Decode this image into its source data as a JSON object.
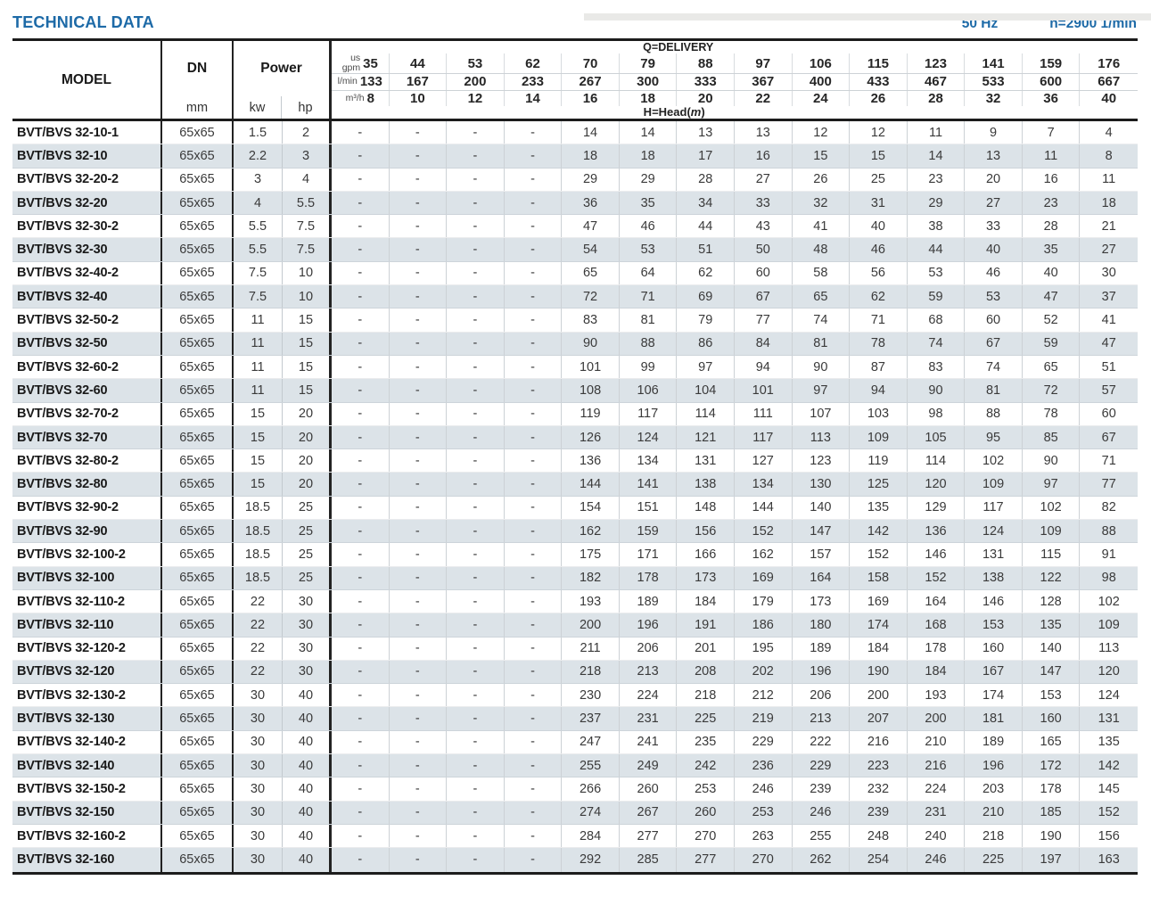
{
  "page": {
    "title": "TECHNICAL DATA",
    "frequency": "50 Hz",
    "speed": "n=2900 1/min"
  },
  "colors": {
    "accent_blue": "#1d6aa7",
    "stripe": "#dce3e8"
  },
  "table": {
    "headers": {
      "model": "MODEL",
      "dn": "DN",
      "dn_unit": "mm",
      "power": "Power",
      "power_units": [
        "kw",
        "hp"
      ],
      "delivery_label": "Q=DELIVERY",
      "head_prefix": "H=Head(",
      "head_var": "m",
      "head_suffix": ")",
      "unit_rows": [
        {
          "label_lines": [
            "us",
            "gpm"
          ],
          "values": [
            "35",
            "44",
            "53",
            "62",
            "70",
            "79",
            "88",
            "97",
            "106",
            "115",
            "123",
            "141",
            "159",
            "176"
          ]
        },
        {
          "label_lines": [
            "l/min"
          ],
          "values": [
            "133",
            "167",
            "200",
            "233",
            "267",
            "300",
            "333",
            "367",
            "400",
            "433",
            "467",
            "533",
            "600",
            "667"
          ]
        },
        {
          "label_lines": [
            "m³/h"
          ],
          "values": [
            "8",
            "10",
            "12",
            "14",
            "16",
            "18",
            "20",
            "22",
            "24",
            "26",
            "28",
            "32",
            "36",
            "40"
          ]
        }
      ]
    },
    "rows": [
      {
        "model": "BVT/BVS 32-10-1",
        "dn": "65x65",
        "kw": "1.5",
        "hp": "2",
        "heads": [
          "-",
          "-",
          "-",
          "-",
          "14",
          "14",
          "13",
          "13",
          "12",
          "12",
          "11",
          "9",
          "7",
          "4"
        ]
      },
      {
        "model": "BVT/BVS 32-10",
        "dn": "65x65",
        "kw": "2.2",
        "hp": "3",
        "heads": [
          "-",
          "-",
          "-",
          "-",
          "18",
          "18",
          "17",
          "16",
          "15",
          "15",
          "14",
          "13",
          "11",
          "8"
        ]
      },
      {
        "model": "BVT/BVS 32-20-2",
        "dn": "65x65",
        "kw": "3",
        "hp": "4",
        "heads": [
          "-",
          "-",
          "-",
          "-",
          "29",
          "29",
          "28",
          "27",
          "26",
          "25",
          "23",
          "20",
          "16",
          "11"
        ]
      },
      {
        "model": "BVT/BVS 32-20",
        "dn": "65x65",
        "kw": "4",
        "hp": "5.5",
        "heads": [
          "-",
          "-",
          "-",
          "-",
          "36",
          "35",
          "34",
          "33",
          "32",
          "31",
          "29",
          "27",
          "23",
          "18"
        ]
      },
      {
        "model": "BVT/BVS 32-30-2",
        "dn": "65x65",
        "kw": "5.5",
        "hp": "7.5",
        "heads": [
          "-",
          "-",
          "-",
          "-",
          "47",
          "46",
          "44",
          "43",
          "41",
          "40",
          "38",
          "33",
          "28",
          "21"
        ]
      },
      {
        "model": "BVT/BVS 32-30",
        "dn": "65x65",
        "kw": "5.5",
        "hp": "7.5",
        "heads": [
          "-",
          "-",
          "-",
          "-",
          "54",
          "53",
          "51",
          "50",
          "48",
          "46",
          "44",
          "40",
          "35",
          "27"
        ]
      },
      {
        "model": "BVT/BVS 32-40-2",
        "dn": "65x65",
        "kw": "7.5",
        "hp": "10",
        "heads": [
          "-",
          "-",
          "-",
          "-",
          "65",
          "64",
          "62",
          "60",
          "58",
          "56",
          "53",
          "46",
          "40",
          "30"
        ]
      },
      {
        "model": "BVT/BVS 32-40",
        "dn": "65x65",
        "kw": "7.5",
        "hp": "10",
        "heads": [
          "-",
          "-",
          "-",
          "-",
          "72",
          "71",
          "69",
          "67",
          "65",
          "62",
          "59",
          "53",
          "47",
          "37"
        ]
      },
      {
        "model": "BVT/BVS 32-50-2",
        "dn": "65x65",
        "kw": "11",
        "hp": "15",
        "heads": [
          "-",
          "-",
          "-",
          "-",
          "83",
          "81",
          "79",
          "77",
          "74",
          "71",
          "68",
          "60",
          "52",
          "41"
        ]
      },
      {
        "model": "BVT/BVS 32-50",
        "dn": "65x65",
        "kw": "11",
        "hp": "15",
        "heads": [
          "-",
          "-",
          "-",
          "-",
          "90",
          "88",
          "86",
          "84",
          "81",
          "78",
          "74",
          "67",
          "59",
          "47"
        ]
      },
      {
        "model": "BVT/BVS 32-60-2",
        "dn": "65x65",
        "kw": "11",
        "hp": "15",
        "heads": [
          "-",
          "-",
          "-",
          "-",
          "101",
          "99",
          "97",
          "94",
          "90",
          "87",
          "83",
          "74",
          "65",
          "51"
        ]
      },
      {
        "model": "BVT/BVS 32-60",
        "dn": "65x65",
        "kw": "11",
        "hp": "15",
        "heads": [
          "-",
          "-",
          "-",
          "-",
          "108",
          "106",
          "104",
          "101",
          "97",
          "94",
          "90",
          "81",
          "72",
          "57"
        ]
      },
      {
        "model": "BVT/BVS 32-70-2",
        "dn": "65x65",
        "kw": "15",
        "hp": "20",
        "heads": [
          "-",
          "-",
          "-",
          "-",
          "119",
          "117",
          "114",
          "111",
          "107",
          "103",
          "98",
          "88",
          "78",
          "60"
        ]
      },
      {
        "model": "BVT/BVS 32-70",
        "dn": "65x65",
        "kw": "15",
        "hp": "20",
        "heads": [
          "-",
          "-",
          "-",
          "-",
          "126",
          "124",
          "121",
          "117",
          "113",
          "109",
          "105",
          "95",
          "85",
          "67"
        ]
      },
      {
        "model": "BVT/BVS 32-80-2",
        "dn": "65x65",
        "kw": "15",
        "hp": "20",
        "heads": [
          "-",
          "-",
          "-",
          "-",
          "136",
          "134",
          "131",
          "127",
          "123",
          "119",
          "114",
          "102",
          "90",
          "71"
        ]
      },
      {
        "model": "BVT/BVS 32-80",
        "dn": "65x65",
        "kw": "15",
        "hp": "20",
        "heads": [
          "-",
          "-",
          "-",
          "-",
          "144",
          "141",
          "138",
          "134",
          "130",
          "125",
          "120",
          "109",
          "97",
          "77"
        ]
      },
      {
        "model": "BVT/BVS 32-90-2",
        "dn": "65x65",
        "kw": "18.5",
        "hp": "25",
        "heads": [
          "-",
          "-",
          "-",
          "-",
          "154",
          "151",
          "148",
          "144",
          "140",
          "135",
          "129",
          "117",
          "102",
          "82"
        ]
      },
      {
        "model": "BVT/BVS 32-90",
        "dn": "65x65",
        "kw": "18.5",
        "hp": "25",
        "heads": [
          "-",
          "-",
          "-",
          "-",
          "162",
          "159",
          "156",
          "152",
          "147",
          "142",
          "136",
          "124",
          "109",
          "88"
        ]
      },
      {
        "model": "BVT/BVS 32-100-2",
        "dn": "65x65",
        "kw": "18.5",
        "hp": "25",
        "heads": [
          "-",
          "-",
          "-",
          "-",
          "175",
          "171",
          "166",
          "162",
          "157",
          "152",
          "146",
          "131",
          "115",
          "91"
        ]
      },
      {
        "model": "BVT/BVS 32-100",
        "dn": "65x65",
        "kw": "18.5",
        "hp": "25",
        "heads": [
          "-",
          "-",
          "-",
          "-",
          "182",
          "178",
          "173",
          "169",
          "164",
          "158",
          "152",
          "138",
          "122",
          "98"
        ]
      },
      {
        "model": "BVT/BVS 32-110-2",
        "dn": "65x65",
        "kw": "22",
        "hp": "30",
        "heads": [
          "-",
          "-",
          "-",
          "-",
          "193",
          "189",
          "184",
          "179",
          "173",
          "169",
          "164",
          "146",
          "128",
          "102"
        ]
      },
      {
        "model": "BVT/BVS 32-110",
        "dn": "65x65",
        "kw": "22",
        "hp": "30",
        "heads": [
          "-",
          "-",
          "-",
          "-",
          "200",
          "196",
          "191",
          "186",
          "180",
          "174",
          "168",
          "153",
          "135",
          "109"
        ]
      },
      {
        "model": "BVT/BVS 32-120-2",
        "dn": "65x65",
        "kw": "22",
        "hp": "30",
        "heads": [
          "-",
          "-",
          "-",
          "-",
          "211",
          "206",
          "201",
          "195",
          "189",
          "184",
          "178",
          "160",
          "140",
          "113"
        ]
      },
      {
        "model": "BVT/BVS 32-120",
        "dn": "65x65",
        "kw": "22",
        "hp": "30",
        "heads": [
          "-",
          "-",
          "-",
          "-",
          "218",
          "213",
          "208",
          "202",
          "196",
          "190",
          "184",
          "167",
          "147",
          "120"
        ]
      },
      {
        "model": "BVT/BVS 32-130-2",
        "dn": "65x65",
        "kw": "30",
        "hp": "40",
        "heads": [
          "-",
          "-",
          "-",
          "-",
          "230",
          "224",
          "218",
          "212",
          "206",
          "200",
          "193",
          "174",
          "153",
          "124"
        ]
      },
      {
        "model": "BVT/BVS 32-130",
        "dn": "65x65",
        "kw": "30",
        "hp": "40",
        "heads": [
          "-",
          "-",
          "-",
          "-",
          "237",
          "231",
          "225",
          "219",
          "213",
          "207",
          "200",
          "181",
          "160",
          "131"
        ]
      },
      {
        "model": "BVT/BVS 32-140-2",
        "dn": "65x65",
        "kw": "30",
        "hp": "40",
        "heads": [
          "-",
          "-",
          "-",
          "-",
          "247",
          "241",
          "235",
          "229",
          "222",
          "216",
          "210",
          "189",
          "165",
          "135"
        ]
      },
      {
        "model": "BVT/BVS 32-140",
        "dn": "65x65",
        "kw": "30",
        "hp": "40",
        "heads": [
          "-",
          "-",
          "-",
          "-",
          "255",
          "249",
          "242",
          "236",
          "229",
          "223",
          "216",
          "196",
          "172",
          "142"
        ]
      },
      {
        "model": "BVT/BVS 32-150-2",
        "dn": "65x65",
        "kw": "30",
        "hp": "40",
        "heads": [
          "-",
          "-",
          "-",
          "-",
          "266",
          "260",
          "253",
          "246",
          "239",
          "232",
          "224",
          "203",
          "178",
          "145"
        ]
      },
      {
        "model": "BVT/BVS 32-150",
        "dn": "65x65",
        "kw": "30",
        "hp": "40",
        "heads": [
          "-",
          "-",
          "-",
          "-",
          "274",
          "267",
          "260",
          "253",
          "246",
          "239",
          "231",
          "210",
          "185",
          "152"
        ]
      },
      {
        "model": "BVT/BVS 32-160-2",
        "dn": "65x65",
        "kw": "30",
        "hp": "40",
        "heads": [
          "-",
          "-",
          "-",
          "-",
          "284",
          "277",
          "270",
          "263",
          "255",
          "248",
          "240",
          "218",
          "190",
          "156"
        ]
      },
      {
        "model": "BVT/BVS 32-160",
        "dn": "65x65",
        "kw": "30",
        "hp": "40",
        "heads": [
          "-",
          "-",
          "-",
          "-",
          "292",
          "285",
          "277",
          "270",
          "262",
          "254",
          "246",
          "225",
          "197",
          "163"
        ]
      }
    ]
  }
}
